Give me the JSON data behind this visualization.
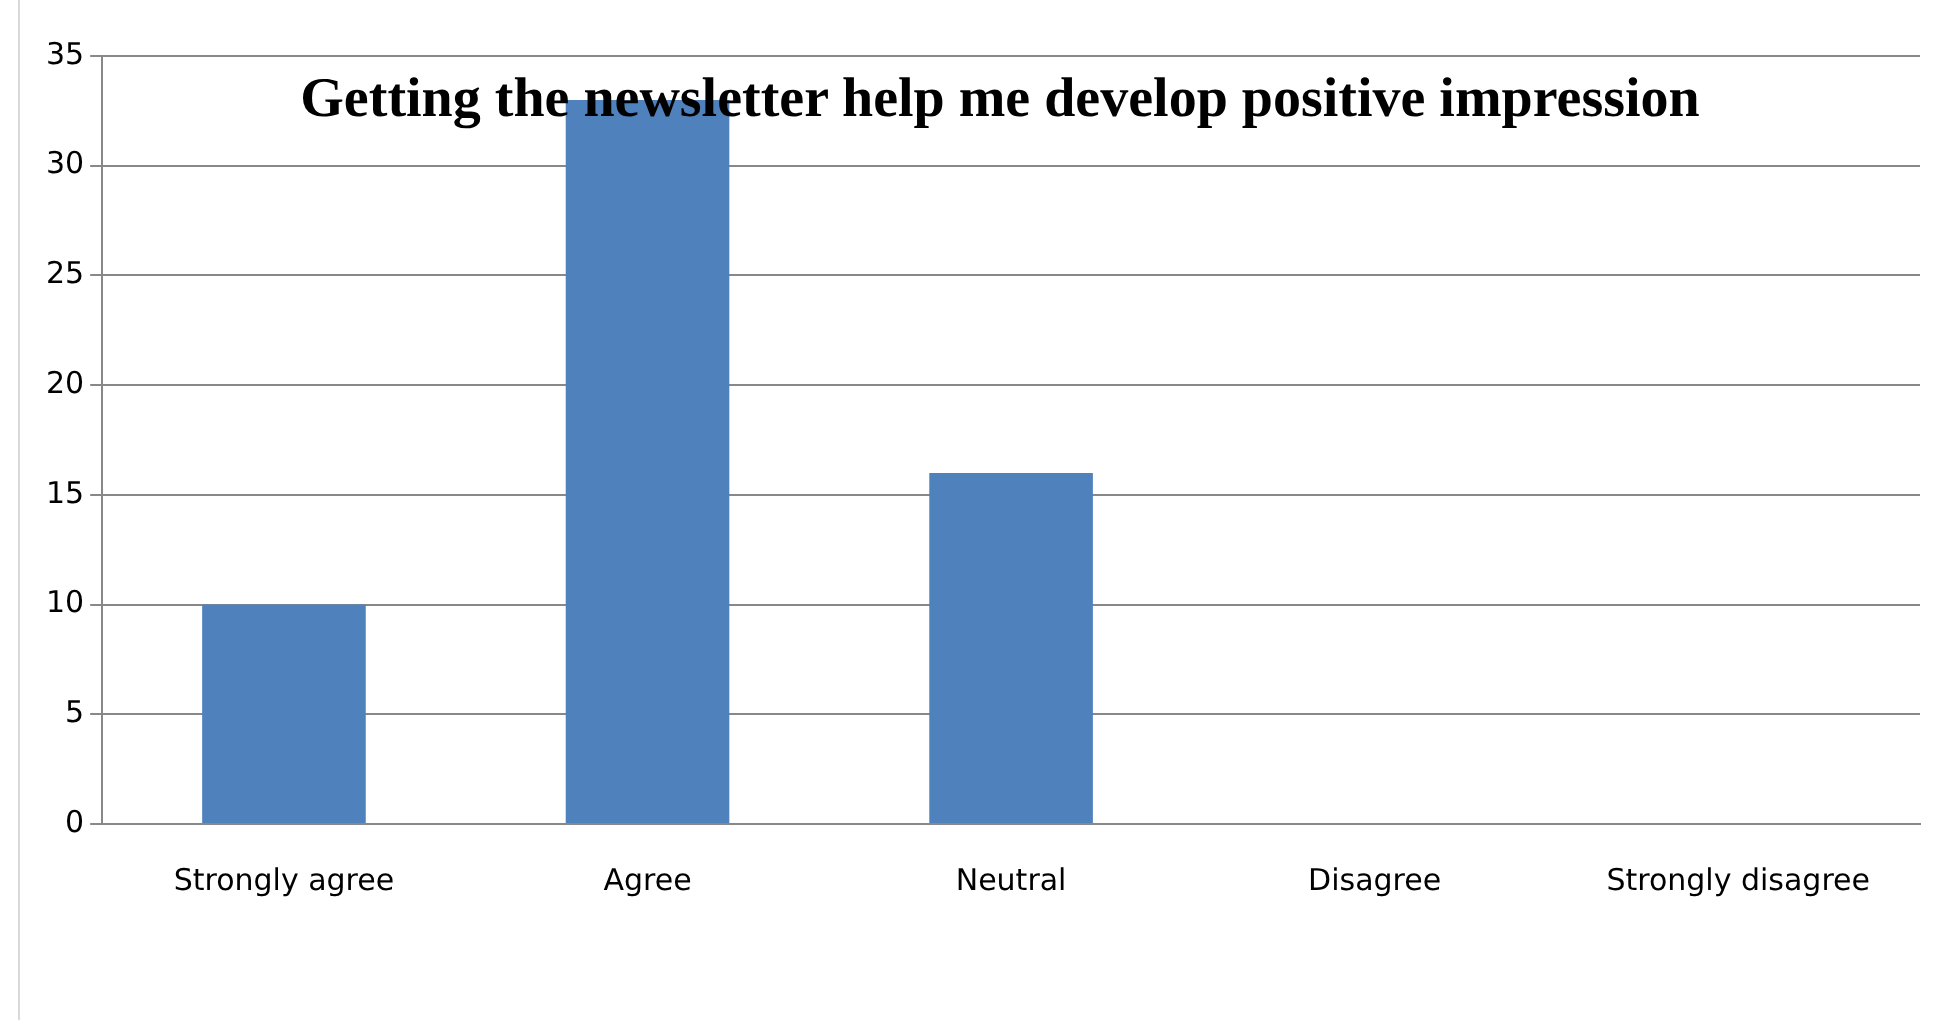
{
  "chart_data": {
    "type": "bar",
    "title": "Getting the newsletter help me develop positive impression",
    "categories": [
      "Strongly agree",
      "Agree",
      "Neutral",
      "Disagree",
      "Strongly disagree"
    ],
    "values": [
      10,
      33,
      16,
      0,
      0
    ],
    "color": "#4f81bd",
    "ylim": [
      0,
      35
    ],
    "yticks": [
      0,
      5,
      10,
      15,
      20,
      25,
      30,
      35
    ],
    "grid": "y",
    "legend": false
  }
}
